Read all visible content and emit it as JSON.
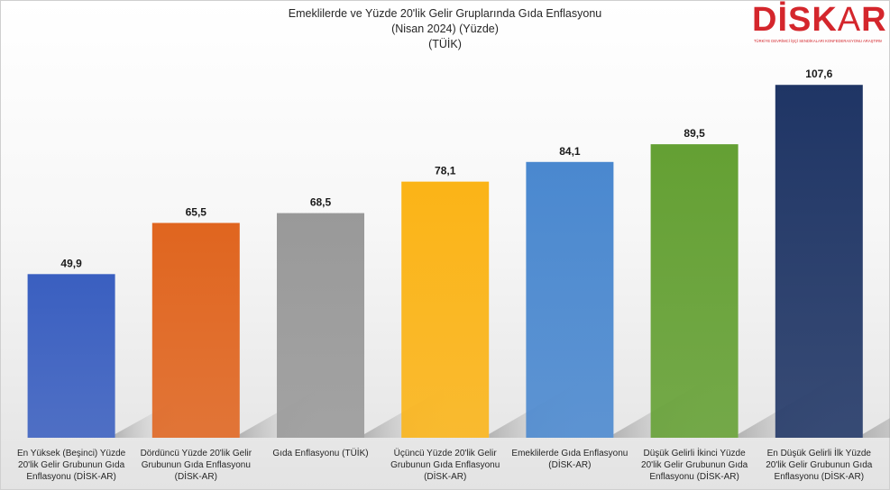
{
  "chart_data": {
    "type": "bar",
    "title": [
      "Emeklilerde ve Yüzde 20'lik Gelir Gruplarında Gıda Enflasyonu",
      "(Nisan 2024) (Yüzde)",
      "(TÜİK)"
    ],
    "categories": [
      "En Yüksek (Beşinci) Yüzde 20'lik Gelir Grubunun Gıda Enflasyonu (DİSK-AR)",
      "Dördüncü Yüzde 20'lik Gelir Grubunun Gıda Enflasyonu (DİSK-AR)",
      "Gıda Enflasyonu (TÜİK)",
      "Üçüncü Yüzde 20'lik Gelir Grubunun Gıda Enflasyonu (DİSK-AR)",
      "Emeklilerde Gıda Enflasyonu (DİSK-AR)",
      "Düşük Gelirli İkinci Yüzde 20'lik Gelir Grubunun Gıda Enflasyonu (DİSK-AR)",
      "En Düşük Gelirli İlk Yüzde 20'lik Gelir Grubunun Gıda Enflasyonu (DİSK-AR)"
    ],
    "category_lines": [
      [
        "En Yüksek (Beşinci) Yüzde",
        "20'lik Gelir Grubunun Gıda",
        "Enflasyonu (DİSK-AR)"
      ],
      [
        "Dördüncü Yüzde 20'lik Gelir",
        "Grubunun Gıda Enflasyonu",
        "(DİSK-AR)"
      ],
      [
        "Gıda Enflasyonu (TÜİK)"
      ],
      [
        "Üçüncü Yüzde 20'lik Gelir",
        "Grubunun Gıda Enflasyonu",
        "(DİSK-AR)"
      ],
      [
        "Emeklilerde Gıda Enflasyonu",
        "(DİSK-AR)"
      ],
      [
        "Düşük Gelirli İkinci Yüzde",
        "20'lik Gelir Grubunun Gıda",
        "Enflasyonu (DİSK-AR)"
      ],
      [
        "En Düşük Gelirli İlk Yüzde",
        "20'lik Gelir Grubunun Gıda",
        "Enflasyonu (DİSK-AR)"
      ]
    ],
    "values": [
      49.9,
      65.5,
      68.5,
      78.1,
      84.1,
      89.5,
      107.6
    ],
    "data_labels": [
      "49,9",
      "65,5",
      "68,5",
      "78,1",
      "84,1",
      "89,5",
      "107,6"
    ],
    "colors": [
      "#3a5fc0",
      "#e0651f",
      "#999999",
      "#fbb417",
      "#4a88cf",
      "#64a033",
      "#1f3565"
    ],
    "ylim": [
      0,
      117
    ],
    "grid": false,
    "legend": "none"
  },
  "logo": {
    "text": "DİSKAR",
    "subtitle": "TÜRKİYE DEVRİMCİ İŞÇİ SENDİKALARI KONFEDERASYONU ARAŞTIRMA MERKEZİ"
  }
}
